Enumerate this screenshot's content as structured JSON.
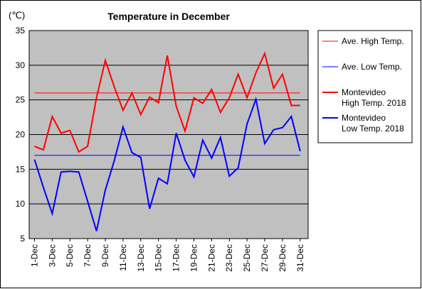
{
  "chart_data": {
    "type": "line",
    "title": "Temperature in December",
    "unit_label": "(℃)",
    "ylim": [
      5,
      35
    ],
    "yticks": [
      5,
      10,
      15,
      20,
      25,
      30,
      35
    ],
    "grid": true,
    "legend_position": "right",
    "categories": [
      "1-Dec",
      "2-Dec",
      "3-Dec",
      "4-Dec",
      "5-Dec",
      "6-Dec",
      "7-Dec",
      "8-Dec",
      "9-Dec",
      "10-Dec",
      "11-Dec",
      "12-Dec",
      "13-Dec",
      "14-Dec",
      "15-Dec",
      "16-Dec",
      "17-Dec",
      "18-Dec",
      "19-Dec",
      "20-Dec",
      "21-Dec",
      "22-Dec",
      "23-Dec",
      "24-Dec",
      "25-Dec",
      "26-Dec",
      "27-Dec",
      "28-Dec",
      "29-Dec",
      "30-Dec",
      "31-Dec"
    ],
    "tick_labels": [
      "1-Dec",
      "3-Dec",
      "5-Dec",
      "7-Dec",
      "9-Dec",
      "11-Dec",
      "13-Dec",
      "15-Dec",
      "17-Dec",
      "19-Dec",
      "21-Dec",
      "23-Dec",
      "25-Dec",
      "27-Dec",
      "29-Dec",
      "31-Dec"
    ],
    "series": [
      {
        "name": "Ave. High Temp.",
        "color": "#ff0000",
        "width": 1,
        "values": [
          26,
          26,
          26,
          26,
          26,
          26,
          26,
          26,
          26,
          26,
          26,
          26,
          26,
          26,
          26,
          26,
          26,
          26,
          26,
          26,
          26,
          26,
          26,
          26,
          26,
          26,
          26,
          26,
          26,
          26,
          26
        ]
      },
      {
        "name": "Ave. Low Temp.",
        "color": "#0000ff",
        "width": 1,
        "values": [
          17,
          17,
          17,
          17,
          17,
          17,
          17,
          17,
          17,
          17,
          17,
          17,
          17,
          17,
          17,
          17,
          17,
          17,
          17,
          17,
          17,
          17,
          17,
          17,
          17,
          17,
          17,
          17,
          17,
          17,
          17
        ]
      },
      {
        "name": "Montevideo High Temp. 2018",
        "color": "#ff0000",
        "width": 2,
        "values": [
          18.3,
          17.8,
          22.6,
          20.2,
          20.6,
          17.5,
          18.3,
          25.3,
          30.7,
          26.9,
          23.5,
          26,
          22.9,
          25.4,
          24.6,
          31.4,
          24.1,
          20.5,
          25.3,
          24.5,
          26.5,
          23.2,
          25.3,
          28.7,
          25.3,
          28.9,
          31.7,
          26.7,
          28.7,
          24.2,
          24.2
        ]
      },
      {
        "name": "Montevideo Low Temp. 2018",
        "color": "#0000ff",
        "width": 2,
        "values": [
          16.4,
          12.4,
          8.6,
          14.6,
          14.7,
          14.6,
          10.4,
          6.1,
          12,
          16.2,
          21.1,
          17.4,
          16.7,
          9.3,
          13.7,
          12.9,
          20.2,
          16.3,
          13.9,
          19.2,
          16.6,
          19.6,
          14,
          15.2,
          21.5,
          25.1,
          18.7,
          20.7,
          21,
          22.6,
          17.6
        ]
      }
    ],
    "legend": [
      {
        "lines": [
          "Ave. High Temp."
        ],
        "series": 0
      },
      {
        "lines": [
          "Ave. Low Temp."
        ],
        "series": 1
      },
      {
        "lines": [
          "Montevideo",
          "High Temp. 2018"
        ],
        "series": 2
      },
      {
        "lines": [
          "Montevideo",
          "Low Temp. 2018"
        ],
        "series": 3
      }
    ]
  }
}
